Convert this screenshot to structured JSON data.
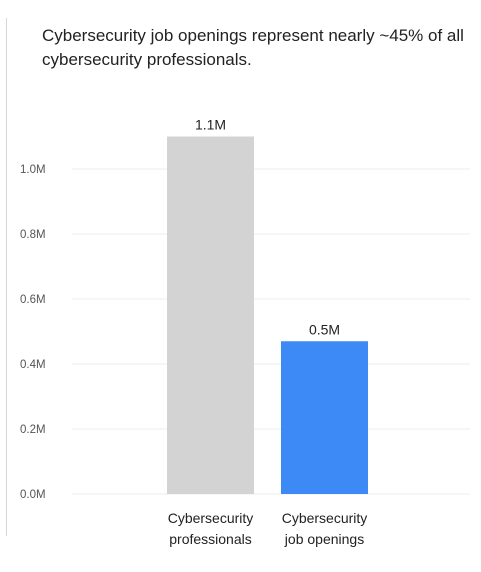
{
  "chart_data": {
    "type": "bar",
    "title": "Cybersecurity job openings represent nearly ~45% of all cybersecurity professionals.",
    "categories": [
      [
        "Cybersecurity",
        "professionals"
      ],
      [
        "Cybersecurity",
        "job openings"
      ]
    ],
    "values": [
      1.1,
      0.5
    ],
    "plotted_values": [
      1.1,
      0.47
    ],
    "data_labels": [
      "1.1M",
      "0.5M"
    ],
    "colors": [
      "#d3d3d3",
      "#3d8af7"
    ],
    "yticks": [
      0.0,
      0.2,
      0.4,
      0.6,
      0.8,
      1.0
    ],
    "ytick_labels": [
      "0.0M",
      "0.2M",
      "0.4M",
      "0.6M",
      "0.8M",
      "1.0M"
    ],
    "ylim": [
      0,
      1.2
    ],
    "grid": true,
    "xlabel": "",
    "ylabel": ""
  }
}
